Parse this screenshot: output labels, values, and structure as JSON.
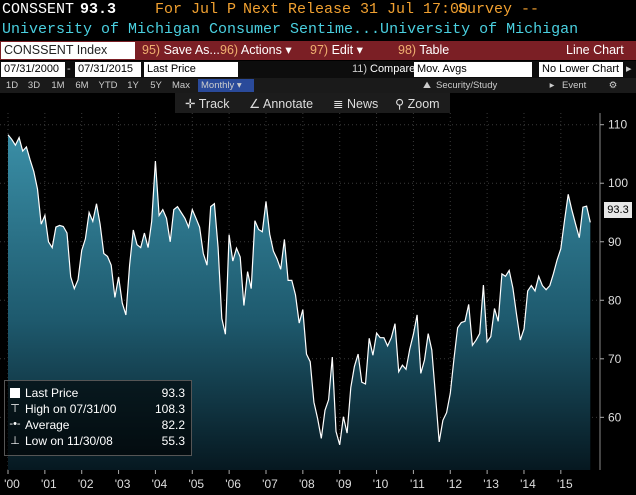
{
  "header": {
    "ticker": "CONSSENT",
    "last": "93.3",
    "period": "For Jul P",
    "next_release": "Next Release 31 Jul 17:00",
    "survey": "Survey --",
    "description": "University of Michigan Consumer Sentime...University of Michigan"
  },
  "toolbar_red": {
    "index_field": "CONSSENT Index",
    "save_num": "95)",
    "save": "Save As...",
    "actions_num": "96)",
    "actions": "Actions",
    "edit_num": "97)",
    "edit": "Edit",
    "table_num": "98)",
    "table": "Table",
    "chart_type": "Line Chart"
  },
  "range_bar": {
    "start_date": "07/31/2000",
    "end_date": "07/31/2015",
    "field": "Last Price",
    "compare_num": "11)",
    "compare": "Compare",
    "mov_avgs": "Mov. Avgs",
    "lower_chart": "No Lower Chart"
  },
  "period_bar": {
    "periods": [
      "1D",
      "3D",
      "1M",
      "6M",
      "YTD",
      "1Y",
      "5Y",
      "Max"
    ],
    "frequency": "Monthly",
    "security": "Security/Study",
    "event": "Event"
  },
  "chart_tools": {
    "track": "Track",
    "annotate": "Annotate",
    "news": "News",
    "zoom": "Zoom"
  },
  "legend": {
    "items": [
      {
        "icon": "last-price-square",
        "label": "Last Price",
        "value": "93.3"
      },
      {
        "icon": "high-marker",
        "label": "High on 07/31/00",
        "value": "108.3"
      },
      {
        "icon": "average-marker",
        "label": "Average",
        "value": "82.2"
      },
      {
        "icon": "low-marker",
        "label": "Low on 11/30/08",
        "value": "55.3"
      }
    ]
  },
  "chart_data": {
    "type": "area",
    "title": "",
    "ylim": [
      51,
      112
    ],
    "y_ticks": [
      "110",
      "100",
      "90",
      "80",
      "70",
      "60"
    ],
    "y_tick_values": [
      110,
      100,
      90,
      80,
      70,
      60
    ],
    "x_ticks": [
      "'00",
      "'01",
      "'02",
      "'03",
      "'04",
      "'05",
      "'06",
      "'07",
      "'08",
      "'09",
      "'10",
      "'11",
      "'12",
      "'13",
      "'14",
      "'15"
    ],
    "x_tick_years": [
      2000,
      2001,
      2002,
      2003,
      2004,
      2005,
      2006,
      2007,
      2008,
      2009,
      2010,
      2011,
      2012,
      2013,
      2014,
      2015
    ],
    "last_value": "93.3",
    "series": [
      {
        "values": [
          [
            2000.0,
            108.3
          ],
          [
            2000.1,
            107.5
          ],
          [
            2000.2,
            106.5
          ],
          [
            2000.3,
            107.8
          ],
          [
            2000.4,
            105.5
          ],
          [
            2000.5,
            106.2
          ],
          [
            2000.6,
            104.0
          ],
          [
            2000.7,
            102.0
          ],
          [
            2000.8,
            99.0
          ],
          [
            2000.9,
            93.0
          ],
          [
            2001.0,
            94.5
          ],
          [
            2001.1,
            90.0
          ],
          [
            2001.2,
            89.0
          ],
          [
            2001.3,
            92.5
          ],
          [
            2001.4,
            92.8
          ],
          [
            2001.5,
            92.6
          ],
          [
            2001.6,
            91.5
          ],
          [
            2001.7,
            84.0
          ],
          [
            2001.8,
            82.0
          ],
          [
            2001.9,
            83.5
          ],
          [
            2002.0,
            88.5
          ],
          [
            2002.1,
            90.5
          ],
          [
            2002.2,
            95.0
          ],
          [
            2002.3,
            93.5
          ],
          [
            2002.4,
            96.5
          ],
          [
            2002.5,
            93.0
          ],
          [
            2002.6,
            88.0
          ],
          [
            2002.7,
            87.5
          ],
          [
            2002.8,
            86.0
          ],
          [
            2002.9,
            80.5
          ],
          [
            2003.0,
            84.0
          ],
          [
            2003.1,
            79.5
          ],
          [
            2003.2,
            77.5
          ],
          [
            2003.3,
            86.0
          ],
          [
            2003.4,
            92.0
          ],
          [
            2003.5,
            89.5
          ],
          [
            2003.6,
            89.0
          ],
          [
            2003.7,
            91.5
          ],
          [
            2003.8,
            89.0
          ],
          [
            2003.9,
            93.5
          ],
          [
            2004.0,
            103.8
          ],
          [
            2004.1,
            94.5
          ],
          [
            2004.2,
            95.5
          ],
          [
            2004.3,
            94.0
          ],
          [
            2004.4,
            90.0
          ],
          [
            2004.5,
            95.5
          ],
          [
            2004.6,
            96.0
          ],
          [
            2004.7,
            95.0
          ],
          [
            2004.8,
            94.0
          ],
          [
            2004.9,
            92.5
          ],
          [
            2005.0,
            95.5
          ],
          [
            2005.1,
            94.0
          ],
          [
            2005.2,
            92.5
          ],
          [
            2005.3,
            88.0
          ],
          [
            2005.4,
            86.0
          ],
          [
            2005.5,
            96.0
          ],
          [
            2005.6,
            96.5
          ],
          [
            2005.7,
            89.0
          ],
          [
            2005.8,
            76.9
          ],
          [
            2005.9,
            74.2
          ],
          [
            2006.0,
            91.2
          ],
          [
            2006.1,
            86.7
          ],
          [
            2006.2,
            88.9
          ],
          [
            2006.3,
            87.4
          ],
          [
            2006.4,
            79.1
          ],
          [
            2006.5,
            84.9
          ],
          [
            2006.6,
            82.0
          ],
          [
            2006.7,
            93.6
          ],
          [
            2006.8,
            92.1
          ],
          [
            2006.9,
            91.7
          ],
          [
            2007.0,
            96.9
          ],
          [
            2007.1,
            91.3
          ],
          [
            2007.2,
            88.4
          ],
          [
            2007.3,
            87.1
          ],
          [
            2007.4,
            85.3
          ],
          [
            2007.5,
            90.4
          ],
          [
            2007.6,
            83.4
          ],
          [
            2007.7,
            83.4
          ],
          [
            2007.8,
            80.9
          ],
          [
            2007.9,
            76.1
          ],
          [
            2008.0,
            78.4
          ],
          [
            2008.1,
            70.8
          ],
          [
            2008.2,
            69.5
          ],
          [
            2008.3,
            62.6
          ],
          [
            2008.4,
            59.8
          ],
          [
            2008.5,
            56.4
          ],
          [
            2008.6,
            61.2
          ],
          [
            2008.7,
            63.0
          ],
          [
            2008.8,
            70.3
          ],
          [
            2008.9,
            57.6
          ],
          [
            2009.0,
            55.3
          ],
          [
            2009.1,
            60.1
          ],
          [
            2009.2,
            57.3
          ],
          [
            2009.3,
            65.1
          ],
          [
            2009.4,
            68.7
          ],
          [
            2009.5,
            70.8
          ],
          [
            2009.6,
            66.0
          ],
          [
            2009.7,
            65.7
          ],
          [
            2009.8,
            73.5
          ],
          [
            2009.9,
            70.6
          ],
          [
            2010.0,
            74.4
          ],
          [
            2010.1,
            73.6
          ],
          [
            2010.2,
            73.6
          ],
          [
            2010.3,
            72.2
          ],
          [
            2010.4,
            73.6
          ],
          [
            2010.5,
            76.0
          ],
          [
            2010.6,
            67.8
          ],
          [
            2010.7,
            68.9
          ],
          [
            2010.8,
            68.2
          ],
          [
            2010.9,
            71.6
          ],
          [
            2011.0,
            74.2
          ],
          [
            2011.1,
            77.5
          ],
          [
            2011.2,
            67.5
          ],
          [
            2011.3,
            69.8
          ],
          [
            2011.4,
            74.3
          ],
          [
            2011.5,
            71.5
          ],
          [
            2011.6,
            63.7
          ],
          [
            2011.7,
            55.8
          ],
          [
            2011.8,
            59.5
          ],
          [
            2011.9,
            60.8
          ],
          [
            2012.0,
            64.1
          ],
          [
            2012.1,
            69.9
          ],
          [
            2012.2,
            75.3
          ],
          [
            2012.3,
            76.2
          ],
          [
            2012.4,
            76.4
          ],
          [
            2012.5,
            79.3
          ],
          [
            2012.6,
            72.3
          ],
          [
            2012.7,
            73.2
          ],
          [
            2012.8,
            74.3
          ],
          [
            2012.9,
            82.6
          ],
          [
            2013.0,
            72.9
          ],
          [
            2013.1,
            73.8
          ],
          [
            2013.2,
            78.6
          ],
          [
            2013.3,
            76.4
          ],
          [
            2013.4,
            84.5
          ],
          [
            2013.5,
            84.1
          ],
          [
            2013.6,
            85.1
          ],
          [
            2013.7,
            82.1
          ],
          [
            2013.8,
            77.5
          ],
          [
            2013.9,
            73.2
          ],
          [
            2014.0,
            75.1
          ],
          [
            2014.1,
            81.6
          ],
          [
            2014.2,
            82.5
          ],
          [
            2014.3,
            81.6
          ],
          [
            2014.4,
            84.1
          ],
          [
            2014.5,
            82.5
          ],
          [
            2014.6,
            81.8
          ],
          [
            2014.7,
            82.5
          ],
          [
            2014.8,
            84.6
          ],
          [
            2014.9,
            86.9
          ],
          [
            2015.0,
            88.8
          ],
          [
            2015.1,
            93.6
          ],
          [
            2015.2,
            98.1
          ],
          [
            2015.3,
            95.4
          ],
          [
            2015.4,
            93.0
          ],
          [
            2015.5,
            90.7
          ],
          [
            2015.6,
            95.9
          ],
          [
            2015.7,
            96.1
          ],
          [
            2015.8,
            93.3
          ]
        ]
      }
    ]
  },
  "colors": {
    "accent_red": "#7b1f25",
    "header_orange": "#f0a030",
    "link_cyan": "#4ad0e0",
    "area_top": "#2a7e96",
    "area_bottom": "#000000"
  }
}
